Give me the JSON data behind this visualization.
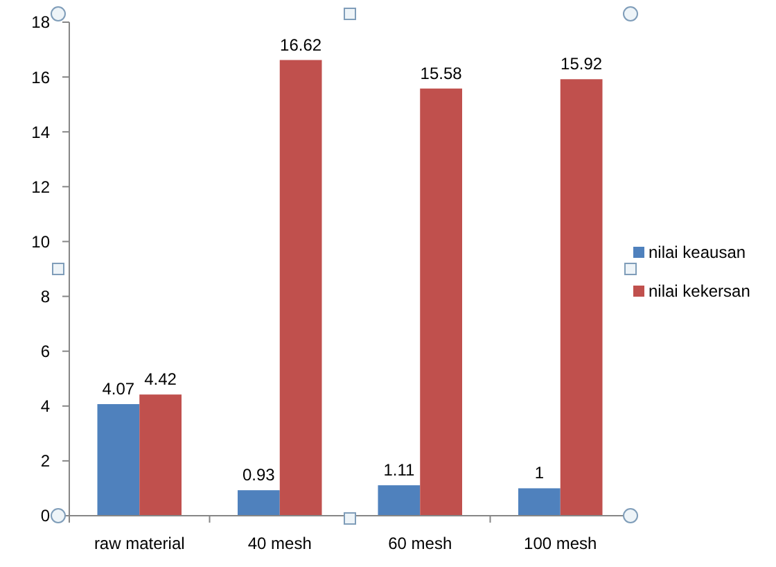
{
  "chart_data": {
    "type": "bar",
    "categories": [
      "raw material",
      "40 mesh",
      "60 mesh",
      "100 mesh"
    ],
    "series": [
      {
        "name": "nilai keausan",
        "color": "#4f81bd",
        "values": [
          4.07,
          0.93,
          1.11,
          1
        ]
      },
      {
        "name": "nilai kekersan",
        "color": "#c0504d",
        "values": [
          4.42,
          16.62,
          15.58,
          15.92
        ]
      }
    ],
    "ylim": [
      0,
      18
    ],
    "yticks": [
      0,
      2,
      4,
      6,
      8,
      10,
      12,
      14,
      16,
      18
    ],
    "data_labels": true,
    "legend": "right",
    "grid": false
  }
}
